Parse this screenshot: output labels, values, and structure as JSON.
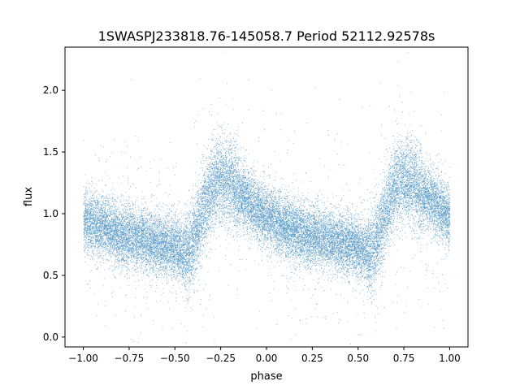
{
  "chart_data": {
    "type": "scatter",
    "title": "1SWASPJ233818.76-145058.7 Period 52112.92578s",
    "xlabel": "phase",
    "ylabel": "flux",
    "xlim": [
      -1.1,
      1.1
    ],
    "ylim": [
      -0.08,
      2.35
    ],
    "xticks": [
      -1.0,
      -0.75,
      -0.5,
      -0.25,
      0.0,
      0.25,
      0.5,
      0.75,
      1.0
    ],
    "xtick_labels": [
      "−1.00",
      "−0.75",
      "−0.50",
      "−0.25",
      "0.00",
      "0.25",
      "0.50",
      "0.75",
      "1.00"
    ],
    "yticks": [
      0.0,
      0.5,
      1.0,
      1.5,
      2.0
    ],
    "ytick_labels": [
      "0.0",
      "0.5",
      "1.0",
      "1.5",
      "2.0"
    ],
    "grid": false,
    "legend": "none",
    "marker_color": "#1f77b4",
    "series": [
      {
        "phase_points": [
          -1.0,
          -0.9,
          -0.8,
          -0.7,
          -0.6,
          -0.5,
          -0.45,
          -0.42,
          -0.35,
          -0.3,
          -0.27,
          -0.2,
          -0.1,
          0.0,
          0.1,
          0.2,
          0.3,
          0.4,
          0.5,
          0.55,
          0.58,
          0.65,
          0.7,
          0.73,
          0.8,
          0.9,
          1.0
        ],
        "mean_flux": [
          0.95,
          0.9,
          0.83,
          0.8,
          0.77,
          0.73,
          0.68,
          0.7,
          1.0,
          1.22,
          1.28,
          1.25,
          1.1,
          0.98,
          0.9,
          0.83,
          0.8,
          0.77,
          0.73,
          0.68,
          0.7,
          1.0,
          1.22,
          1.28,
          1.25,
          1.1,
          0.98
        ],
        "scatter_sigma": 0.12,
        "point_count": 26000
      }
    ]
  }
}
